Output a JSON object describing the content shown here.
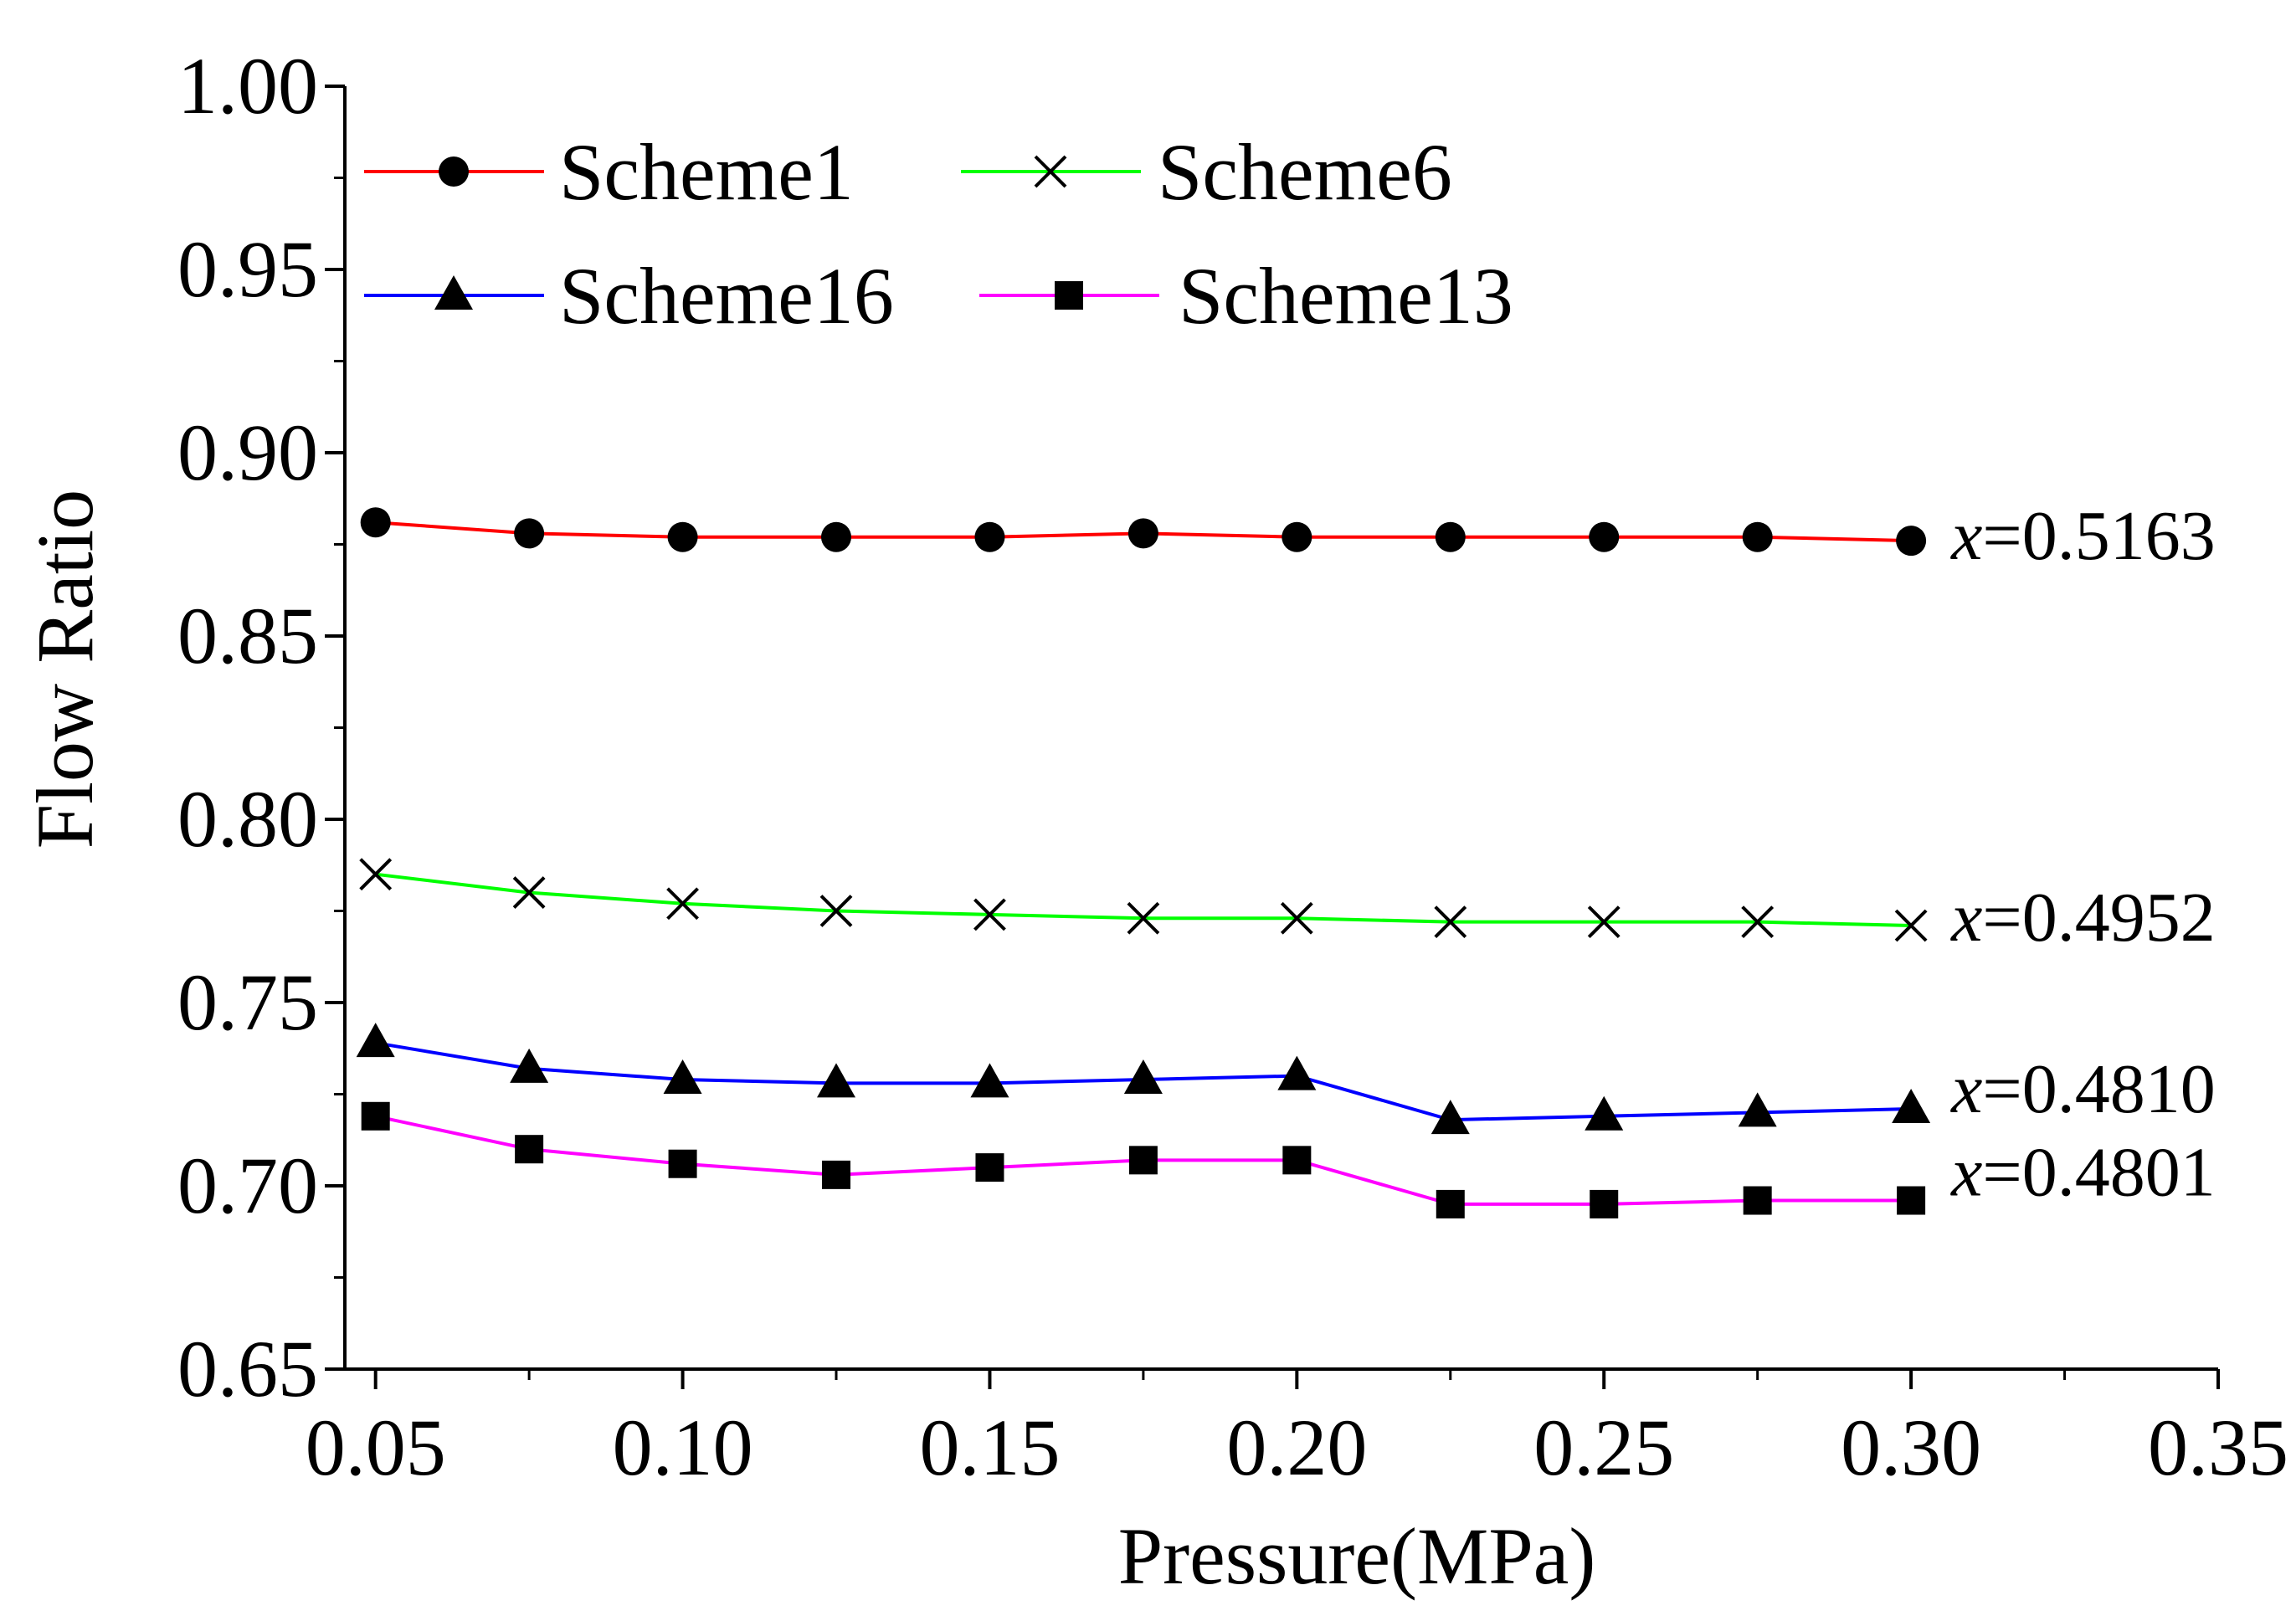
{
  "chart_data": {
    "type": "line",
    "xlabel": "Pressure(MPa)",
    "ylabel": "Flow Ratio",
    "xlim": [
      0.045,
      0.35
    ],
    "ylim": [
      0.65,
      1.0
    ],
    "x_ticks": [
      "0.05",
      "0.10",
      "0.15",
      "0.20",
      "0.25",
      "0.30",
      "0.35"
    ],
    "y_ticks": [
      "0.65",
      "0.70",
      "0.75",
      "0.80",
      "0.85",
      "0.90",
      "0.95",
      "1.00"
    ],
    "x": [
      0.05,
      0.075,
      0.1,
      0.125,
      0.15,
      0.175,
      0.2,
      0.225,
      0.25,
      0.275,
      0.3
    ],
    "series": [
      {
        "name": "Scheme1",
        "color": "#ff0000",
        "marker": "circle",
        "values": [
          0.881,
          0.878,
          0.877,
          0.877,
          0.877,
          0.878,
          0.877,
          0.877,
          0.877,
          0.877,
          0.876
        ],
        "annotation": {
          "var": "x",
          "value": "=0.5163"
        }
      },
      {
        "name": "Scheme6",
        "color": "#00ff00",
        "marker": "x",
        "values": [
          0.785,
          0.78,
          0.777,
          0.775,
          0.774,
          0.773,
          0.773,
          0.772,
          0.772,
          0.772,
          0.771
        ],
        "annotation": {
          "var": "x",
          "value": "=0.4952"
        }
      },
      {
        "name": "Scheme16",
        "color": "#0000ff",
        "marker": "triangle",
        "values": [
          0.739,
          0.732,
          0.729,
          0.728,
          0.728,
          0.729,
          0.73,
          0.718,
          0.719,
          0.72,
          0.721
        ],
        "annotation": {
          "var": "x",
          "value": "=0.4810"
        }
      },
      {
        "name": "Scheme13",
        "color": "#ff00ff",
        "marker": "square",
        "values": [
          0.719,
          0.71,
          0.706,
          0.703,
          0.705,
          0.707,
          0.707,
          0.695,
          0.695,
          0.696,
          0.696
        ],
        "annotation": {
          "var": "x",
          "value": "=0.4801"
        }
      }
    ],
    "legend": {
      "position": "top-left",
      "columns": 2,
      "order": [
        "Scheme1",
        "Scheme6",
        "Scheme16",
        "Scheme13"
      ]
    },
    "grid": false
  }
}
